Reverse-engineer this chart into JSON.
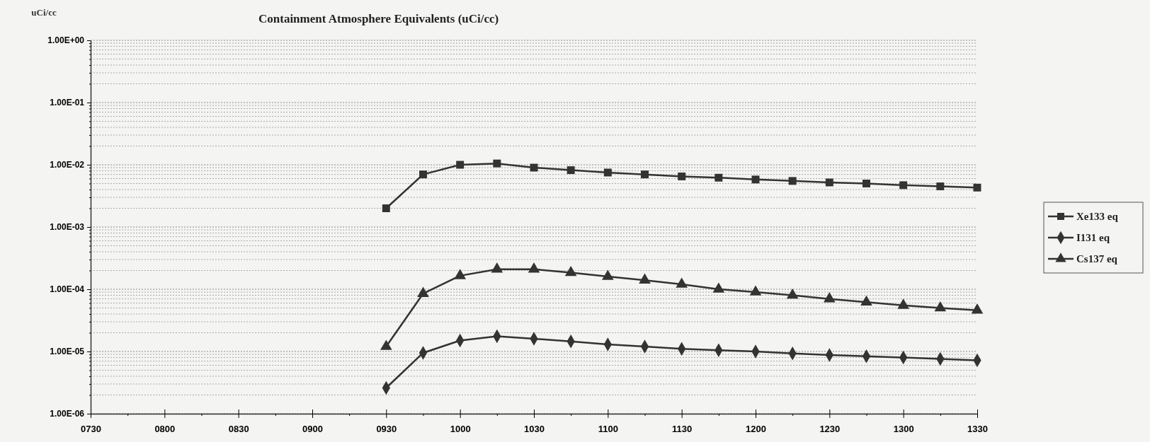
{
  "chart_data": {
    "type": "line",
    "title": "Containment Atmosphere Equivalents (uCi/cc)",
    "ylabel": "uCi/cc",
    "log": "y",
    "grid": "y",
    "legend": "right",
    "categories": [
      "0730",
      null,
      "0800",
      null,
      "0830",
      null,
      "0900",
      null,
      "0930",
      null,
      "1000",
      null,
      "1030",
      null,
      "1100",
      null,
      "1130",
      null,
      "1200",
      null,
      "1230",
      null,
      "1300",
      null,
      "1330"
    ],
    "ylim": [
      1e-06,
      1
    ],
    "yticks": [
      {
        "value": 1e-06,
        "label": "1.00E-06"
      },
      {
        "value": 2e-06,
        "label": null
      },
      {
        "value": 3e-06,
        "label": null
      },
      {
        "value": 4e-06,
        "label": null
      },
      {
        "value": 5e-06,
        "label": null
      },
      {
        "value": 6e-06,
        "label": null
      },
      {
        "value": 7e-06,
        "label": null
      },
      {
        "value": 8e-06,
        "label": null
      },
      {
        "value": 9e-06,
        "label": null
      },
      {
        "value": 1e-05,
        "label": "1.00E-05"
      },
      {
        "value": 2e-05,
        "label": null
      },
      {
        "value": 3e-05,
        "label": null
      },
      {
        "value": 4e-05,
        "label": null
      },
      {
        "value": 5e-05,
        "label": null
      },
      {
        "value": 6e-05,
        "label": null
      },
      {
        "value": 7e-05,
        "label": null
      },
      {
        "value": 8e-05,
        "label": null
      },
      {
        "value": 9e-05,
        "label": null
      },
      {
        "value": 0.0001,
        "label": "1.00E-04"
      },
      {
        "value": 0.0002,
        "label": null
      },
      {
        "value": 0.0003,
        "label": null
      },
      {
        "value": 0.0004,
        "label": null
      },
      {
        "value": 0.0005,
        "label": null
      },
      {
        "value": 0.0006,
        "label": null
      },
      {
        "value": 0.0007,
        "label": null
      },
      {
        "value": 0.0008,
        "label": null
      },
      {
        "value": 0.0009,
        "label": null
      },
      {
        "value": 0.001,
        "label": "1.00E-03"
      },
      {
        "value": 0.002,
        "label": null
      },
      {
        "value": 0.003,
        "label": null
      },
      {
        "value": 0.004,
        "label": null
      },
      {
        "value": 0.005,
        "label": null
      },
      {
        "value": 0.006,
        "label": null
      },
      {
        "value": 0.007,
        "label": null
      },
      {
        "value": 0.008,
        "label": null
      },
      {
        "value": 0.009,
        "label": null
      },
      {
        "value": 0.01,
        "label": "1.00E-02"
      },
      {
        "value": 0.02,
        "label": null
      },
      {
        "value": 0.03,
        "label": null
      },
      {
        "value": 0.04,
        "label": null
      },
      {
        "value": 0.05,
        "label": null
      },
      {
        "value": 0.06,
        "label": null
      },
      {
        "value": 0.07,
        "label": null
      },
      {
        "value": 0.08,
        "label": null
      },
      {
        "value": 0.09,
        "label": null
      },
      {
        "value": 0.1,
        "label": "1.00E-01"
      },
      {
        "value": 0.2,
        "label": null
      },
      {
        "value": 0.3,
        "label": null
      },
      {
        "value": 0.4,
        "label": null
      },
      {
        "value": 0.5,
        "label": null
      },
      {
        "value": 0.6,
        "label": null
      },
      {
        "value": 0.7,
        "label": null
      },
      {
        "value": 0.8,
        "label": null
      },
      {
        "value": 0.9,
        "label": null
      },
      {
        "value": 1,
        "label": "1.00E+00"
      }
    ],
    "series": [
      {
        "name": "Xe133 eq",
        "color": "#333333",
        "marker": "square",
        "values": [
          null,
          null,
          null,
          null,
          null,
          null,
          null,
          null,
          0.002,
          0.007,
          0.01,
          0.0105,
          0.009,
          0.0082,
          0.0075,
          0.007,
          0.0065,
          0.0062,
          0.0058,
          0.0055,
          0.0052,
          0.005,
          0.0047,
          0.0045,
          0.0043
        ]
      },
      {
        "name": "I131 eq",
        "color": "#333333",
        "marker": "diamond",
        "values": [
          null,
          null,
          null,
          null,
          null,
          null,
          null,
          null,
          2.6e-06,
          9.5e-06,
          1.5e-05,
          1.75e-05,
          1.6e-05,
          1.45e-05,
          1.3e-05,
          1.2e-05,
          1.1e-05,
          1.05e-05,
          1e-05,
          9.3e-06,
          8.8e-06,
          8.4e-06,
          8e-06,
          7.6e-06,
          7.2e-06
        ]
      },
      {
        "name": "Cs137 eq",
        "color": "#333333",
        "marker": "triangle",
        "values": [
          null,
          null,
          null,
          null,
          null,
          null,
          null,
          null,
          1.2e-05,
          8.5e-05,
          0.000165,
          0.00021,
          0.00021,
          0.000185,
          0.00016,
          0.00014,
          0.00012,
          0.0001,
          9e-05,
          8e-05,
          7e-05,
          6.2e-05,
          5.5e-05,
          5e-05,
          4.6e-05
        ]
      }
    ]
  }
}
